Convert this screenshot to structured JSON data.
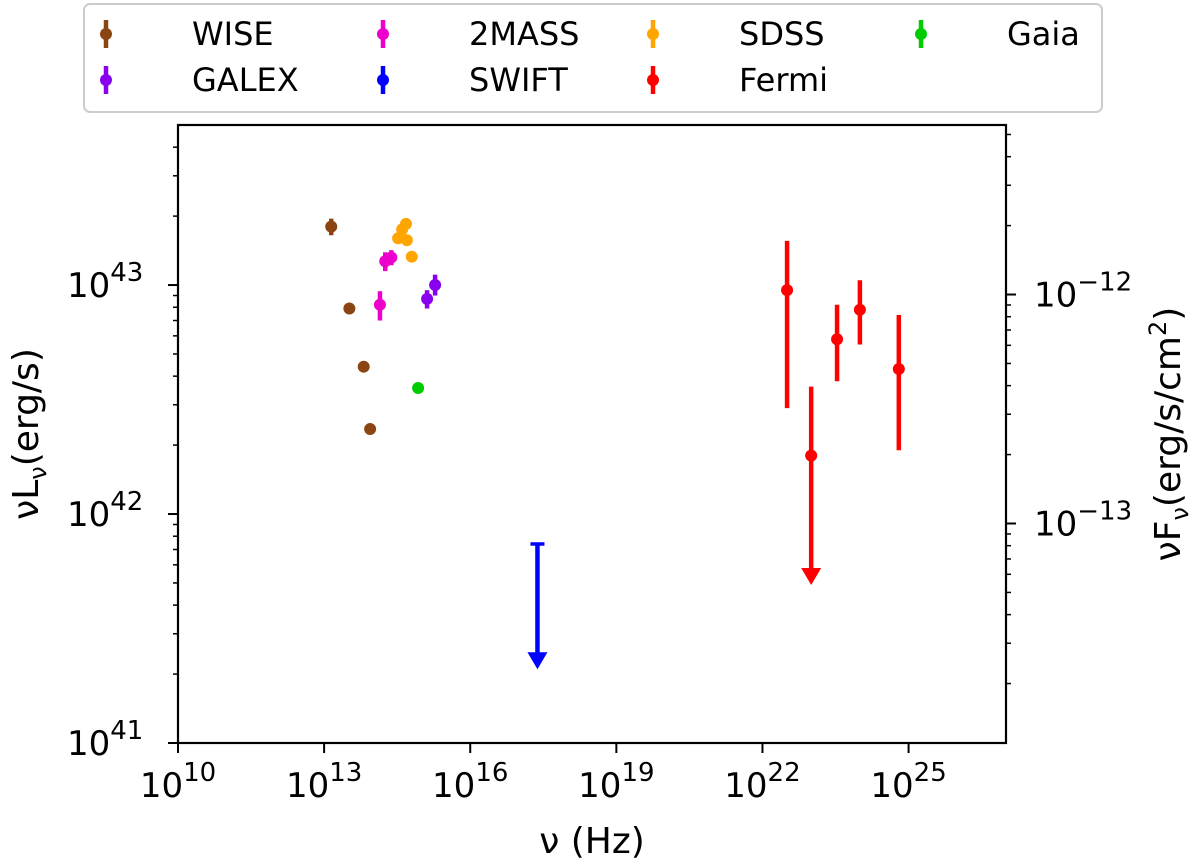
{
  "chart_data": {
    "type": "scatter",
    "xscale": "log",
    "yscale": "log",
    "xlim": [
      10000000000.0,
      1e+27
    ],
    "ylim_left": [
      1e+41,
      5e+43
    ],
    "ylim_right": [
      1.1e-14,
      5.5e-12
    ],
    "xlabel_main": "ν (Hz)",
    "ylabel_left_main": "νL",
    "ylabel_left_sub": "ν",
    "ylabel_left_unit": "(erg/s)",
    "ylabel_right_main": "νF",
    "ylabel_right_sub": "ν",
    "ylabel_right_unit_pre": "(erg/s/cm",
    "ylabel_right_unit_sup": "2",
    "ylabel_right_unit_post": ")",
    "x_ticks": [
      {
        "value": 10000000000.0,
        "base": "10",
        "exp": "10"
      },
      {
        "value": 10000000000000.0,
        "base": "10",
        "exp": "13"
      },
      {
        "value": 1e+16,
        "base": "10",
        "exp": "16"
      },
      {
        "value": 1e+19,
        "base": "10",
        "exp": "19"
      },
      {
        "value": 1e+22,
        "base": "10",
        "exp": "22"
      },
      {
        "value": 1e+25,
        "base": "10",
        "exp": "25"
      }
    ],
    "y_left_ticks": [
      {
        "value": 1e+41,
        "base": "10",
        "exp": "41"
      },
      {
        "value": 1e+42,
        "base": "10",
        "exp": "42"
      },
      {
        "value": 1e+43,
        "base": "10",
        "exp": "43"
      }
    ],
    "y_right_ticks": [
      {
        "value": 1e-13,
        "base": "10",
        "exp": "−13"
      },
      {
        "value": 1e-12,
        "base": "10",
        "exp": "−12"
      }
    ],
    "legend": {
      "placement": "top",
      "columns": 4
    },
    "series": [
      {
        "name": "WISE",
        "color": "#8b4513",
        "points": [
          {
            "x": 14000000000000.0,
            "y": 1.8e+43,
            "yerr_low": 1.5e+42,
            "yerr_high": 1.5e+42
          },
          {
            "x": 33000000000000.0,
            "y": 7.9e+42
          },
          {
            "x": 65000000000000.0,
            "y": 4.4e+42
          },
          {
            "x": 88000000000000.0,
            "y": 2.35e+42
          }
        ]
      },
      {
        "name": "2MASS",
        "color": "#ee00cc",
        "points": [
          {
            "x": 140000000000000.0,
            "y": 8.2e+42,
            "yerr_low": 1.2e+42,
            "yerr_high": 1.2e+42
          },
          {
            "x": 180000000000000.0,
            "y": 1.27e+43,
            "yerr_low": 1.2e+42,
            "yerr_high": 1.2e+42
          },
          {
            "x": 240000000000000.0,
            "y": 1.32e+43,
            "yerr_low": 1e+42,
            "yerr_high": 1e+42
          }
        ]
      },
      {
        "name": "SDSS",
        "color": "#ffa500",
        "points": [
          {
            "x": 330000000000000.0,
            "y": 1.6e+43
          },
          {
            "x": 400000000000000.0,
            "y": 1.75e+43
          },
          {
            "x": 480000000000000.0,
            "y": 1.85e+43
          },
          {
            "x": 500000000000000.0,
            "y": 1.57e+43
          },
          {
            "x": 630000000000000.0,
            "y": 1.33e+43
          }
        ]
      },
      {
        "name": "Gaia",
        "color": "#00cc00",
        "points": [
          {
            "x": 850000000000000.0,
            "y": 3.55e+42
          }
        ]
      },
      {
        "name": "GALEX",
        "color": "#8800ee",
        "points": [
          {
            "x": 1300000000000000.0,
            "y": 8.7e+42,
            "yerr_low": 8e+41,
            "yerr_high": 8e+41
          },
          {
            "x": 1900000000000000.0,
            "y": 1e+43,
            "yerr_low": 1e+42,
            "yerr_high": 1.1e+42
          }
        ]
      },
      {
        "name": "SWIFT",
        "color": "#0000ff",
        "points": [
          {
            "x": 2.4e+17,
            "y": 7.4e+41,
            "upper_limit": true,
            "arrow_to": 2.1e+41
          }
        ]
      },
      {
        "name": "Fermi",
        "color": "#ff0000",
        "points": [
          {
            "x": 3.2e+22,
            "y": 9.5e+42,
            "yerr_low": 6.6e+42,
            "yerr_high": 6.1e+42
          },
          {
            "x": 1e+23,
            "y": 1.8e+42,
            "upper_limit": true,
            "error_top": 3.6e+42,
            "arrow_to": 4.9e+41
          },
          {
            "x": 3.4e+23,
            "y": 5.8e+42,
            "yerr_low": 2e+42,
            "yerr_high": 2.4e+42
          },
          {
            "x": 1e+24,
            "y": 7.8e+42,
            "yerr_low": 2.3e+42,
            "yerr_high": 2.7e+42
          },
          {
            "x": 6.3e+24,
            "y": 4.3e+42,
            "yerr_low": 2.4e+42,
            "yerr_high": 3.1e+42
          }
        ]
      }
    ]
  }
}
